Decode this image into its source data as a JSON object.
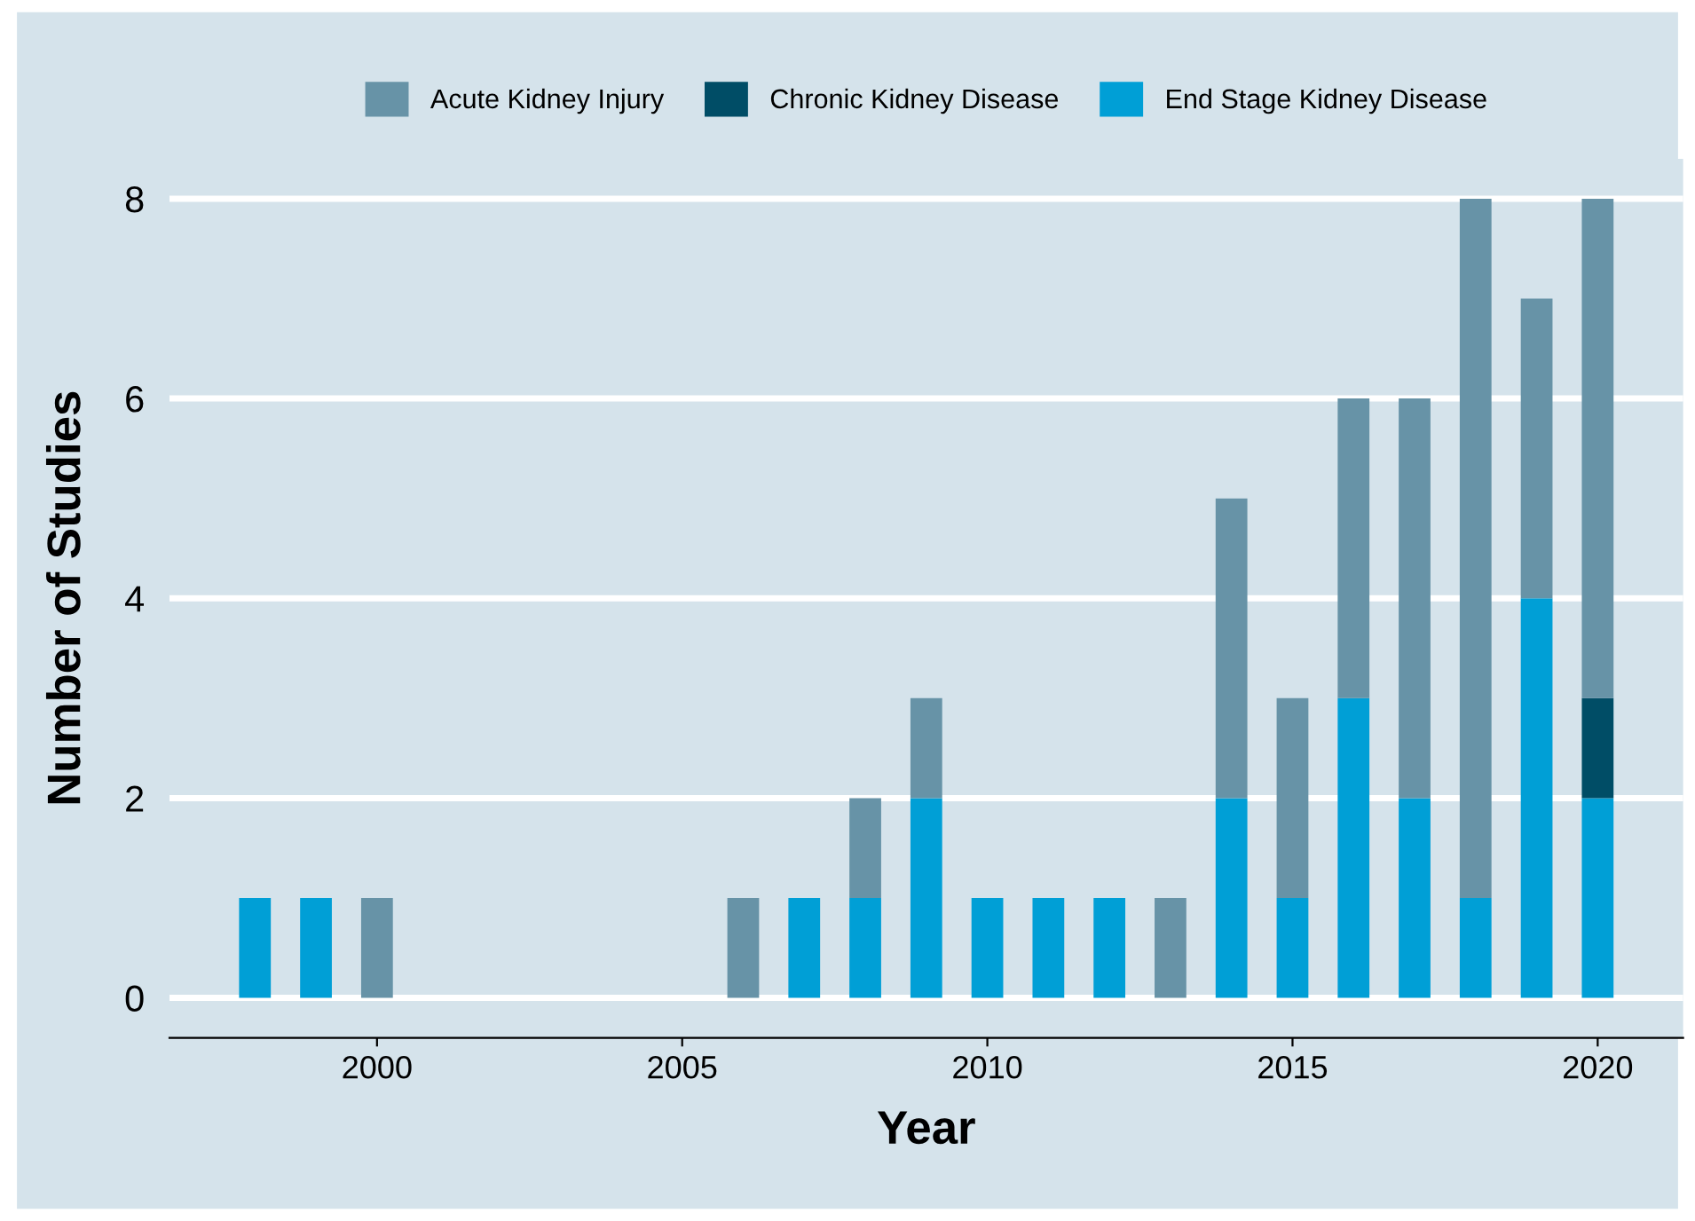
{
  "chart_data": {
    "type": "bar",
    "stacked": true,
    "xlabel": "Year",
    "ylabel": "Number of Studies",
    "x": [
      1998,
      1999,
      2000,
      2001,
      2002,
      2003,
      2004,
      2005,
      2006,
      2007,
      2008,
      2009,
      2010,
      2011,
      2012,
      2013,
      2014,
      2015,
      2016,
      2017,
      2018,
      2019,
      2020
    ],
    "series": [
      {
        "name": "End Stage Kidney Disease",
        "color": "#009fd6",
        "values": [
          1,
          1,
          null,
          null,
          null,
          null,
          null,
          null,
          null,
          1,
          1,
          2,
          1,
          1,
          1,
          null,
          2,
          1,
          3,
          2,
          1,
          4,
          2
        ]
      },
      {
        "name": "Chronic Kidney Disease",
        "color": "#004d66",
        "values": [
          null,
          null,
          null,
          null,
          null,
          null,
          null,
          null,
          null,
          null,
          null,
          null,
          null,
          null,
          null,
          null,
          null,
          null,
          null,
          null,
          null,
          null,
          1
        ]
      },
      {
        "name": "Acute Kidney Injury",
        "color": "#6793a7",
        "values": [
          null,
          null,
          1,
          null,
          null,
          null,
          null,
          null,
          1,
          null,
          1,
          1,
          null,
          null,
          null,
          1,
          3,
          2,
          3,
          4,
          7,
          3,
          5
        ]
      }
    ],
    "xlim": [
      1996.6,
      2021.4
    ],
    "xticks": [
      2000,
      2005,
      2010,
      2015,
      2020
    ],
    "ylim": [
      -0.4,
      8.4
    ],
    "yticks": [
      0,
      2,
      4,
      6,
      8
    ],
    "grid": "y",
    "legend": "top"
  }
}
